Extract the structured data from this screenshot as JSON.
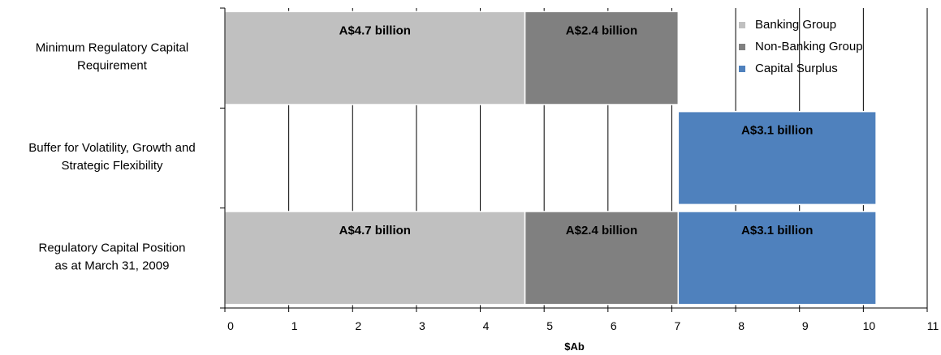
{
  "chart_data": {
    "type": "bar",
    "orientation": "horizontal",
    "stacked": true,
    "title": "",
    "xlabel": "$Ab",
    "ylabel": "",
    "xlim": [
      0,
      11
    ],
    "xticks": [
      0,
      1,
      2,
      3,
      4,
      5,
      6,
      7,
      8,
      9,
      10,
      11
    ],
    "grid": "vertical",
    "legend_position": "top-right",
    "categories": [
      [
        "Minimum Regulatory Capital",
        "Requirement"
      ],
      [
        "Buffer for Volatility, Growth and",
        "Strategic Flexibility"
      ],
      [
        "Regulatory Capital Position",
        "as at March 31, 2009"
      ]
    ],
    "series": [
      {
        "name": "Banking Group",
        "color": "#c0c0c0",
        "starts": [
          0,
          null,
          0
        ],
        "values": [
          4.7,
          null,
          4.7
        ],
        "labels": [
          "A$4.7 billion",
          "",
          "A$4.7 billion"
        ]
      },
      {
        "name": "Non-Banking Group",
        "color": "#808080",
        "starts": [
          4.7,
          null,
          4.7
        ],
        "values": [
          2.4,
          null,
          2.4
        ],
        "labels": [
          "A$2.4 billion",
          "",
          "A$2.4 billion"
        ]
      },
      {
        "name": "Capital Surplus",
        "color": "#4f81bd",
        "starts": [
          null,
          7.1,
          7.1
        ],
        "values": [
          null,
          3.1,
          3.1
        ],
        "labels": [
          "",
          "A$3.1 billion",
          "A$3.1 billion"
        ]
      }
    ]
  }
}
